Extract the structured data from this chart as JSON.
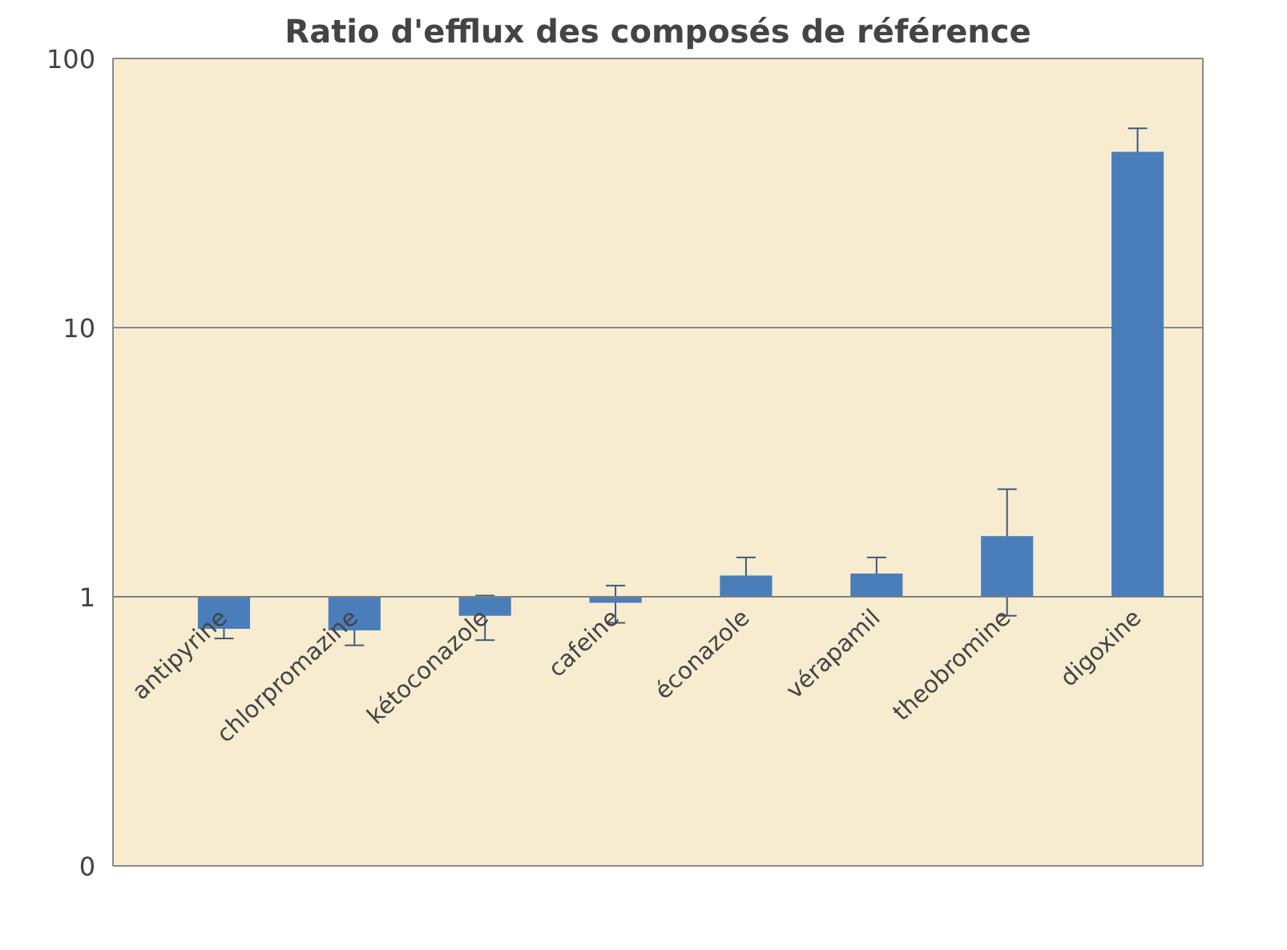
{
  "chart_data": {
    "type": "bar",
    "title": "Ratio d'efflux des composés de référence",
    "categories": [
      "antipyrine",
      "chlorpromazine",
      "kétoconazole",
      "cafeine",
      "éconazole",
      "vérapamil",
      "theobromine",
      "digoxine"
    ],
    "values": [
      -0.24,
      -0.25,
      -0.15,
      -0.05,
      0.2,
      0.22,
      0.68,
      44
    ],
    "base": [
      1,
      1,
      1,
      1,
      1,
      1,
      1,
      1
    ],
    "errors": [
      0.06,
      0.09,
      0.16,
      0.15,
      0.2,
      0.18,
      0.83,
      10
    ],
    "color": "#4a7ebb",
    "log": true,
    "ylim": [
      0.1,
      100
    ],
    "yticks": [
      {
        "value": 0.1,
        "label": "0"
      },
      1,
      10,
      100
    ],
    "grid": "y"
  }
}
